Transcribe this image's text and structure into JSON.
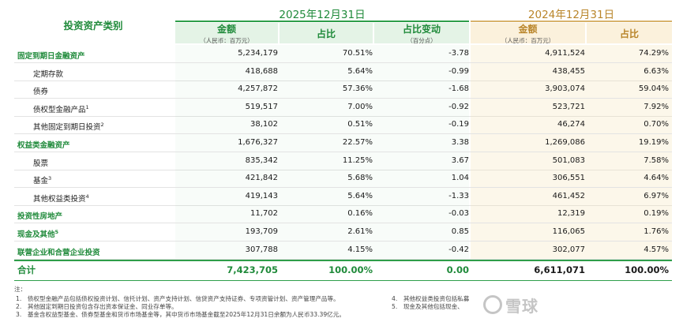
{
  "header": {
    "category": "投资资产类别",
    "year_2025": "2025年12月31日",
    "year_2024": "2024年12月31日",
    "amount": "金额",
    "amount_unit": "（人民币：百万元）",
    "share": "占比",
    "share_change": "占比变动",
    "share_change_unit": "（百分点）"
  },
  "rows": [
    {
      "label": "固定到期日金融资产",
      "sup": "",
      "a25": "5,234,179",
      "p25": "70.51%",
      "chg": "-3.78",
      "a24": "4,911,524",
      "p24": "74.29%"
    },
    {
      "label": "定期存款",
      "sup": "",
      "a25": "418,688",
      "p25": "5.64%",
      "chg": "-0.99",
      "a24": "438,455",
      "p24": "6.63%"
    },
    {
      "label": "债券",
      "sup": "",
      "a25": "4,257,872",
      "p25": "57.36%",
      "chg": "-1.68",
      "a24": "3,903,074",
      "p24": "59.04%"
    },
    {
      "label": "债权型金融产品",
      "sup": "1",
      "a25": "519,517",
      "p25": "7.00%",
      "chg": "-0.92",
      "a24": "523,721",
      "p24": "7.92%"
    },
    {
      "label": "其他固定到期日投资",
      "sup": "2",
      "a25": "38,102",
      "p25": "0.51%",
      "chg": "-0.19",
      "a24": "46,274",
      "p24": "0.70%"
    },
    {
      "label": "权益类金融资产",
      "sup": "",
      "a25": "1,676,327",
      "p25": "22.57%",
      "chg": "3.38",
      "a24": "1,269,086",
      "p24": "19.19%"
    },
    {
      "label": "股票",
      "sup": "",
      "a25": "835,342",
      "p25": "11.25%",
      "chg": "3.67",
      "a24": "501,083",
      "p24": "7.58%"
    },
    {
      "label": "基金",
      "sup": "3",
      "a25": "421,842",
      "p25": "5.68%",
      "chg": "1.04",
      "a24": "306,551",
      "p24": "4.64%"
    },
    {
      "label": "其他权益类投资",
      "sup": "4",
      "a25": "419,143",
      "p25": "5.64%",
      "chg": "-1.33",
      "a24": "461,452",
      "p24": "6.97%"
    },
    {
      "label": "投资性房地产",
      "sup": "",
      "a25": "11,702",
      "p25": "0.16%",
      "chg": "-0.03",
      "a24": "12,319",
      "p24": "0.19%"
    },
    {
      "label": "现金及其他",
      "sup": "5",
      "a25": "193,709",
      "p25": "2.61%",
      "chg": "0.85",
      "a24": "116,065",
      "p24": "1.76%"
    },
    {
      "label": "联营企业和合营企业投资",
      "sup": "",
      "a25": "307,788",
      "p25": "4.15%",
      "chg": "-0.42",
      "a24": "302,077",
      "p24": "4.57%"
    }
  ],
  "total": {
    "label": "合计",
    "a25": "7,423,705",
    "p25": "100.00%",
    "chg": "0.00",
    "a24": "6,611,071",
    "p24": "100.00%"
  },
  "notes": {
    "title": "注：",
    "n1": "1.　债权型金融产品包括债权投资计划、信托计划、资产支持计划、信贷资产支持证券、专项资管计划、资产管理产品等。",
    "n2": "2.　其他固定到期日投资包含存出资本保证金、同业存单等。",
    "n3": "3.　基金含权益型基金、债券型基金和货币市场基金等，其中货币市场基金截至2025年12月31日余额为人民币33.39亿元。",
    "n4": "4.　其他权益类投资包括私募",
    "n5": "5.　现金及其他包括现金、"
  },
  "watermark": "雪球"
}
